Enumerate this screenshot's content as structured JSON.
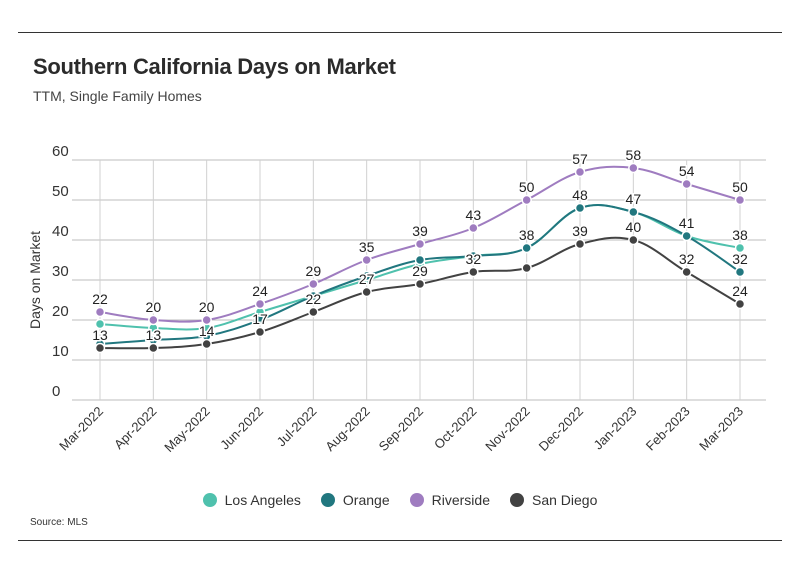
{
  "header": {
    "title": "Southern California Days on Market",
    "subtitle": "TTM, Single Family Homes"
  },
  "footer": {
    "source": "Source: MLS"
  },
  "colors": {
    "Los Angeles": "#4fc1ad",
    "Orange": "#21777f",
    "Riverside": "#9f7cc0",
    "San Diego": "#424242"
  },
  "chart_data": {
    "type": "line",
    "title": "Southern California Days on Market",
    "subtitle": "TTM, Single Family Homes",
    "ylabel": "Days on Market",
    "xlabel": "",
    "ylim": [
      0,
      60
    ],
    "yticks": [
      0,
      10,
      20,
      30,
      40,
      50,
      60
    ],
    "grid": true,
    "legend_position": "bottom",
    "categories": [
      "Mar-2022",
      "Apr-2022",
      "May-2022",
      "Jun-2022",
      "Jul-2022",
      "Aug-2022",
      "Sep-2022",
      "Oct-2022",
      "Nov-2022",
      "Dec-2022",
      "Jan-2023",
      "Feb-2023",
      "Mar-2023"
    ],
    "series": [
      {
        "name": "Los Angeles",
        "values": [
          19,
          18,
          18,
          22,
          26,
          30,
          34,
          36,
          38,
          48,
          47,
          41,
          38
        ],
        "labeled": []
      },
      {
        "name": "Orange",
        "values": [
          14,
          15,
          16,
          20,
          26,
          31,
          35,
          36,
          38,
          48,
          47,
          41,
          32
        ],
        "labeled": [
          8,
          9,
          10,
          11,
          12
        ]
      },
      {
        "name": "Riverside",
        "values": [
          22,
          20,
          20,
          24,
          29,
          35,
          39,
          43,
          50,
          57,
          58,
          54,
          50
        ],
        "labeled": [
          0,
          1,
          2,
          3,
          4,
          5,
          6,
          7,
          8,
          9,
          10,
          11,
          12
        ]
      },
      {
        "name": "San Diego",
        "values": [
          13,
          13,
          14,
          17,
          22,
          27,
          29,
          32,
          33,
          39,
          40,
          32,
          24
        ],
        "labeled": [
          0,
          1,
          2,
          3,
          4,
          5,
          6,
          7,
          9,
          10,
          11,
          12
        ]
      }
    ],
    "end_labels": [
      {
        "series": "Los Angeles",
        "index": 12,
        "text": "38"
      }
    ]
  },
  "source": "Source: MLS"
}
